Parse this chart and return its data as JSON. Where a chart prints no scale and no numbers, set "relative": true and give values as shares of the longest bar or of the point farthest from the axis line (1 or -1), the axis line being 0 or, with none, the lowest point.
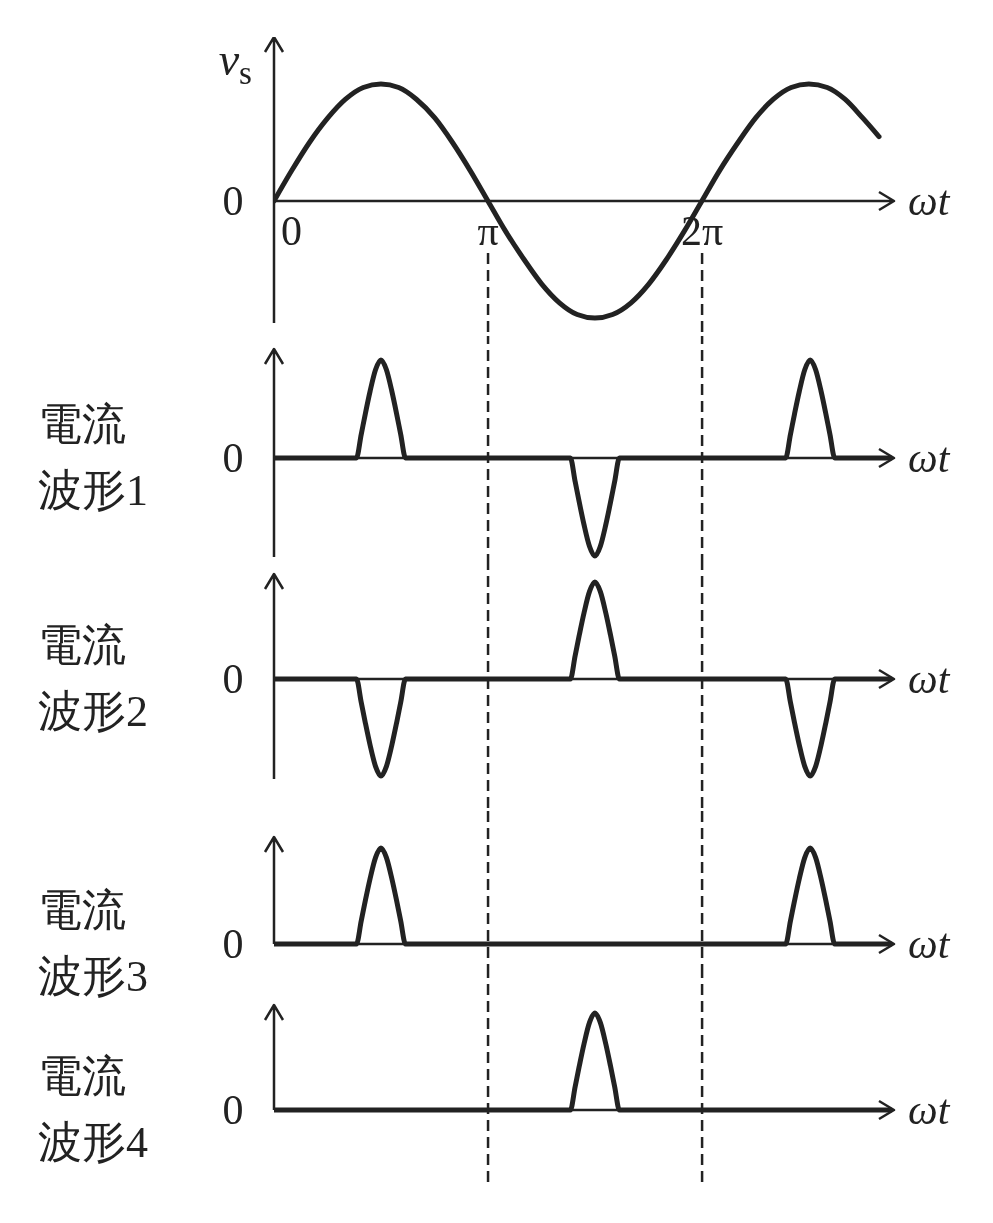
{
  "chart_data": [
    {
      "type": "line",
      "ylabel": "v$_{s}$",
      "xlabel": "ωt",
      "relative": true,
      "xlim": [
        0,
        9.1
      ],
      "xticks": [
        0,
        {
          "value": 3.1416,
          "label": "π"
        },
        {
          "value": 6.2832,
          "label": "2π"
        }
      ],
      "tick_labels": "x",
      "annotations": [
        "0"
      ],
      "ref_lines": [
        {
          "axis": "x",
          "value": 3.1416,
          "color": "#222222",
          "line_style": "dashed"
        },
        {
          "axis": "x",
          "value": 6.2832,
          "color": "#222222",
          "line_style": "dashed"
        }
      ],
      "series": [
        {
          "color": "#222222",
          "x": [
            0,
            0.26,
            0.52,
            0.79,
            1.05,
            1.31,
            1.57,
            1.83,
            2.09,
            2.36,
            2.62,
            2.88,
            3.14,
            3.4,
            3.67,
            3.93,
            4.19,
            4.45,
            4.71,
            4.97,
            5.24,
            5.5,
            5.76,
            6.02,
            6.28,
            6.54,
            6.81,
            7.07,
            7.33,
            7.59,
            7.85,
            8.12,
            8.38,
            8.64,
            8.88
          ],
          "values": [
            0,
            0.26,
            0.5,
            0.71,
            0.87,
            0.97,
            1,
            0.97,
            0.87,
            0.71,
            0.5,
            0.26,
            0,
            -0.26,
            -0.5,
            -0.71,
            -0.87,
            -0.97,
            -1,
            -0.97,
            -0.87,
            -0.71,
            -0.5,
            -0.26,
            0,
            0.26,
            0.5,
            0.71,
            0.87,
            0.97,
            1,
            0.97,
            0.87,
            0.71,
            0.55
          ]
        }
      ]
    },
    {
      "type": "line",
      "ylabel": "電流波形1",
      "xlabel": "ωt",
      "relative": true,
      "xlim": [
        0,
        9.1
      ],
      "tick_labels": false,
      "annotations": [
        "0"
      ],
      "ref_lines": [
        {
          "axis": "x",
          "value": 3.1416,
          "color": "#222222",
          "line_style": "dashed"
        },
        {
          "axis": "x",
          "value": 6.2832,
          "color": "#222222",
          "line_style": "dashed"
        }
      ],
      "series": [
        {
          "color": "#222222",
          "x": [
            0,
            1.21,
            1.28,
            1.34,
            1.41,
            1.49,
            1.57,
            1.65,
            1.73,
            1.8,
            1.86,
            1.93,
            4.35,
            4.42,
            4.48,
            4.55,
            4.63,
            4.71,
            4.79,
            4.87,
            4.94,
            5,
            5.07,
            7.51,
            7.58,
            7.64,
            7.71,
            7.79,
            7.87,
            7.95,
            8.03,
            8.1,
            8.16,
            8.23,
            9.05
          ],
          "values": [
            0,
            0,
            0.24,
            0.45,
            0.68,
            0.9,
            1,
            0.9,
            0.68,
            0.45,
            0.24,
            0,
            0,
            -0.24,
            -0.45,
            -0.68,
            -0.9,
            -1,
            -0.9,
            -0.68,
            -0.45,
            -0.24,
            0,
            0,
            0.24,
            0.45,
            0.68,
            0.9,
            1,
            0.9,
            0.68,
            0.45,
            0.24,
            0,
            0
          ]
        }
      ]
    },
    {
      "type": "line",
      "ylabel": "電流波形2",
      "xlabel": "ωt",
      "relative": true,
      "xlim": [
        0,
        9.1
      ],
      "tick_labels": false,
      "annotations": [
        "0"
      ],
      "ref_lines": [
        {
          "axis": "x",
          "value": 3.1416,
          "color": "#222222",
          "line_style": "dashed"
        },
        {
          "axis": "x",
          "value": 6.2832,
          "color": "#222222",
          "line_style": "dashed"
        }
      ],
      "series": [
        {
          "color": "#222222",
          "x": [
            0,
            1.21,
            1.28,
            1.34,
            1.41,
            1.49,
            1.57,
            1.65,
            1.73,
            1.8,
            1.86,
            1.93,
            4.35,
            4.42,
            4.48,
            4.55,
            4.63,
            4.71,
            4.79,
            4.87,
            4.94,
            5,
            5.07,
            7.51,
            7.58,
            7.64,
            7.71,
            7.79,
            7.87,
            7.95,
            8.03,
            8.1,
            8.16,
            8.23,
            9.05
          ],
          "values": [
            0,
            0,
            -0.24,
            -0.45,
            -0.68,
            -0.9,
            -1,
            -0.9,
            -0.68,
            -0.45,
            -0.24,
            0,
            0,
            0.24,
            0.45,
            0.68,
            0.9,
            1,
            0.9,
            0.68,
            0.45,
            0.24,
            0,
            0,
            -0.24,
            -0.45,
            -0.68,
            -0.9,
            -1,
            -0.9,
            -0.68,
            -0.45,
            -0.24,
            0,
            0
          ]
        }
      ]
    },
    {
      "type": "line",
      "ylabel": "電流波形3",
      "xlabel": "ωt",
      "relative": true,
      "xlim": [
        0,
        9.1
      ],
      "tick_labels": false,
      "annotations": [
        "0"
      ],
      "ref_lines": [
        {
          "axis": "x",
          "value": 3.1416,
          "color": "#222222",
          "line_style": "dashed"
        },
        {
          "axis": "x",
          "value": 6.2832,
          "color": "#222222",
          "line_style": "dashed"
        }
      ],
      "series": [
        {
          "color": "#222222",
          "x": [
            0,
            1.21,
            1.28,
            1.34,
            1.41,
            1.49,
            1.57,
            1.65,
            1.73,
            1.8,
            1.86,
            1.93,
            7.51,
            7.58,
            7.64,
            7.71,
            7.79,
            7.87,
            7.95,
            8.03,
            8.1,
            8.16,
            8.23,
            9.05
          ],
          "values": [
            0,
            0,
            0.24,
            0.45,
            0.68,
            0.9,
            1,
            0.9,
            0.68,
            0.45,
            0.24,
            0,
            0,
            0.24,
            0.45,
            0.68,
            0.9,
            1,
            0.9,
            0.68,
            0.45,
            0.24,
            0,
            0
          ]
        }
      ]
    },
    {
      "type": "line",
      "ylabel": "電流波形4",
      "xlabel": "ωt",
      "relative": true,
      "xlim": [
        0,
        9.1
      ],
      "tick_labels": false,
      "annotations": [
        "0"
      ],
      "ref_lines": [
        {
          "axis": "x",
          "value": 3.1416,
          "color": "#222222",
          "line_style": "dashed"
        },
        {
          "axis": "x",
          "value": 6.2832,
          "color": "#222222",
          "line_style": "dashed"
        }
      ],
      "series": [
        {
          "color": "#222222",
          "x": [
            0,
            4.35,
            4.42,
            4.48,
            4.55,
            4.63,
            4.71,
            4.79,
            4.87,
            4.94,
            5,
            5.07,
            9.05
          ],
          "values": [
            0,
            0,
            0.24,
            0.45,
            0.68,
            0.9,
            1,
            0.9,
            0.68,
            0.45,
            0.24,
            0,
            0
          ]
        }
      ]
    }
  ]
}
